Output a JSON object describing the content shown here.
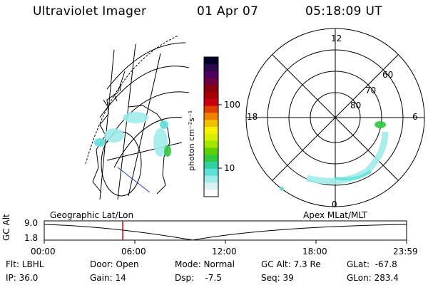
{
  "header": {
    "title": "Ultraviolet Imager",
    "date": "01 Apr 07",
    "time": "05:18:09 UT"
  },
  "colorbar": {
    "label": "photon cm⁻²s⁻¹",
    "ticks": [
      "100",
      "10"
    ],
    "colors": [
      "#000028",
      "#2a0a4a",
      "#4a0060",
      "#6a0040",
      "#8a0010",
      "#a80000",
      "#c80010",
      "#e04000",
      "#f08000",
      "#f0c000",
      "#f8f000",
      "#d8f000",
      "#a0e800",
      "#60d000",
      "#30c840",
      "#30d0a0",
      "#60e0d8",
      "#a0ecec",
      "#d8f4f4",
      "#ffffff"
    ]
  },
  "left_map": {
    "label": "Geographic Lat/Lon"
  },
  "polar": {
    "label": "Apex MLat/MLT",
    "mlt_labels": {
      "top": "12",
      "left": "18",
      "right": "6",
      "bottom": "0"
    },
    "lat_labels": [
      "60",
      "70",
      "80"
    ]
  },
  "timeline": {
    "ylabel": "GC Alt",
    "y_ticks": [
      "9.0",
      "1.8"
    ],
    "x_ticks": [
      "00:00",
      "06:00",
      "12:00",
      "18:00",
      "23:59"
    ],
    "marker_time": "05:18",
    "marker_color": "#dd0000"
  },
  "info": {
    "flt": "Flt: LBHL",
    "door": "Door: Open",
    "mode": "Mode: Normal",
    "gcalt": "GC Alt: 7.3 Re",
    "glat": "GLat:  -67.8",
    "ip": "IP: 36.0",
    "gain": "Gain: 14",
    "dsp": "Dsp:    -7.5",
    "seq": "Seq: 39",
    "glon": "GLon: 283.4"
  }
}
